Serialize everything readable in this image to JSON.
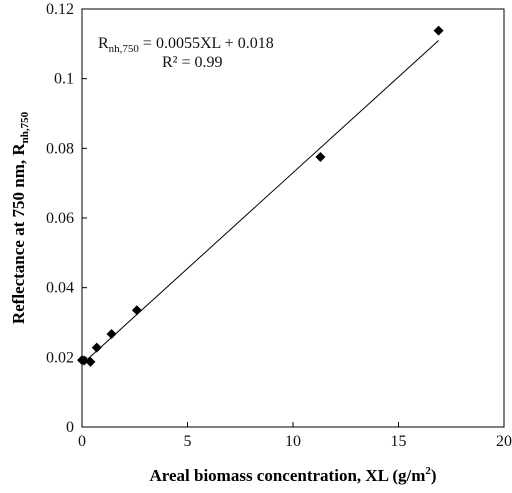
{
  "chart_data": {
    "type": "scatter",
    "title": "",
    "xlabel": "Areal biomass concentration, XL (g/m",
    "xlabel_sup": "2",
    "xlabel_suffix": ")",
    "ylabel": "Reflectance at 750 nm, R",
    "ylabel_sub": "nh,750",
    "xlim": [
      0,
      20
    ],
    "ylim": [
      0,
      0.12
    ],
    "x_ticks": [
      0,
      5,
      10,
      15,
      20
    ],
    "x_tick_labels": [
      "0",
      "5",
      "10",
      "15",
      "20"
    ],
    "y_ticks": [
      0,
      0.02,
      0.04,
      0.06,
      0.08,
      0.1,
      0.12
    ],
    "y_tick_labels": [
      "0",
      "0.02",
      "0.04",
      "0.06",
      "0.08",
      "0.1",
      "0.12"
    ],
    "grid": false,
    "series": [
      {
        "marker": "diamond",
        "color": "#000000",
        "points": [
          {
            "x": 0.0,
            "y": 0.0192
          },
          {
            "x": 0.1,
            "y": 0.0191
          },
          {
            "x": 0.4,
            "y": 0.0187
          },
          {
            "x": 0.7,
            "y": 0.0228
          },
          {
            "x": 1.4,
            "y": 0.0267
          },
          {
            "x": 2.6,
            "y": 0.0335
          },
          {
            "x": 11.3,
            "y": 0.0775
          },
          {
            "x": 16.9,
            "y": 0.1138
          }
        ]
      }
    ],
    "trendline": {
      "slope": 0.0055,
      "intercept": 0.018,
      "x_range": [
        0,
        16.9
      ],
      "color": "#000000"
    },
    "annotation": {
      "equation_lhs": "R",
      "equation_sub": "nh,750",
      "equation_rhs": " = 0.0055XL + 0.018",
      "r2": "R² = 0.99"
    }
  }
}
